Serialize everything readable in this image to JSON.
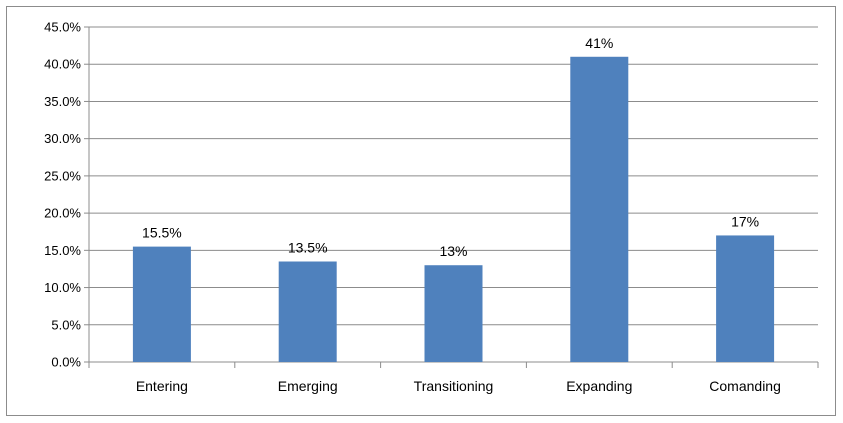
{
  "chart_data": {
    "type": "bar",
    "categories": [
      "Entering",
      "Emerging",
      "Transitioning",
      "Expanding",
      "Comanding"
    ],
    "values": [
      15.5,
      13.5,
      13,
      41,
      17
    ],
    "data_labels": [
      "15.5%",
      "13.5%",
      "13%",
      "41%",
      "17%"
    ],
    "y_tick_labels": [
      "0.0%",
      "5.0%",
      "10.0%",
      "15.0%",
      "20.0%",
      "25.0%",
      "30.0%",
      "35.0%",
      "40.0%",
      "45.0%"
    ],
    "ylim": [
      0,
      45
    ],
    "y_step": 5,
    "title": "",
    "xlabel": "",
    "ylabel": "",
    "grid": true,
    "legend": "none",
    "bar_color": "#4f81bd",
    "grid_color": "#8c8c8c"
  }
}
